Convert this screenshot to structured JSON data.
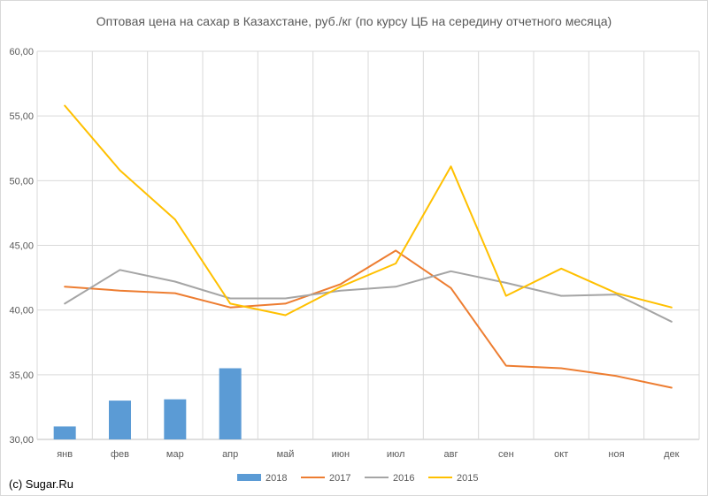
{
  "chart_data": {
    "type": "bar+line",
    "title": "Оптовая цена на сахар в Казахстане, руб./кг (по курсу ЦБ на середину отчетного месяца)",
    "categories": [
      "янв",
      "фев",
      "мар",
      "апр",
      "май",
      "июн",
      "июл",
      "авг",
      "сен",
      "окт",
      "ноя",
      "дек"
    ],
    "y_ticks": [
      "30,00",
      "35,00",
      "40,00",
      "45,00",
      "50,00",
      "55,00",
      "60,00"
    ],
    "ylim": [
      30,
      60
    ],
    "grid": true,
    "legend_position": "bottom",
    "series": [
      {
        "name": "2018",
        "kind": "bar",
        "color": "#5b9bd5",
        "values": [
          31.0,
          33.0,
          33.1,
          35.5,
          null,
          null,
          null,
          null,
          null,
          null,
          null,
          null
        ]
      },
      {
        "name": "2017",
        "kind": "line",
        "color": "#ed7d31",
        "values": [
          41.8,
          41.5,
          41.3,
          40.2,
          40.5,
          42.0,
          44.6,
          41.7,
          35.7,
          35.5,
          34.9,
          34.0
        ]
      },
      {
        "name": "2016",
        "kind": "line",
        "color": "#a5a5a5",
        "values": [
          40.5,
          43.1,
          42.2,
          40.9,
          40.9,
          41.5,
          41.8,
          43.0,
          42.1,
          41.1,
          41.2,
          39.1
        ]
      },
      {
        "name": "2015",
        "kind": "line",
        "color": "#ffc000",
        "values": [
          55.8,
          50.8,
          47.0,
          40.5,
          39.6,
          41.8,
          43.6,
          51.1,
          41.1,
          43.2,
          41.3,
          40.2
        ]
      }
    ]
  },
  "footer": {
    "copyright": "(c) Sugar.Ru"
  }
}
